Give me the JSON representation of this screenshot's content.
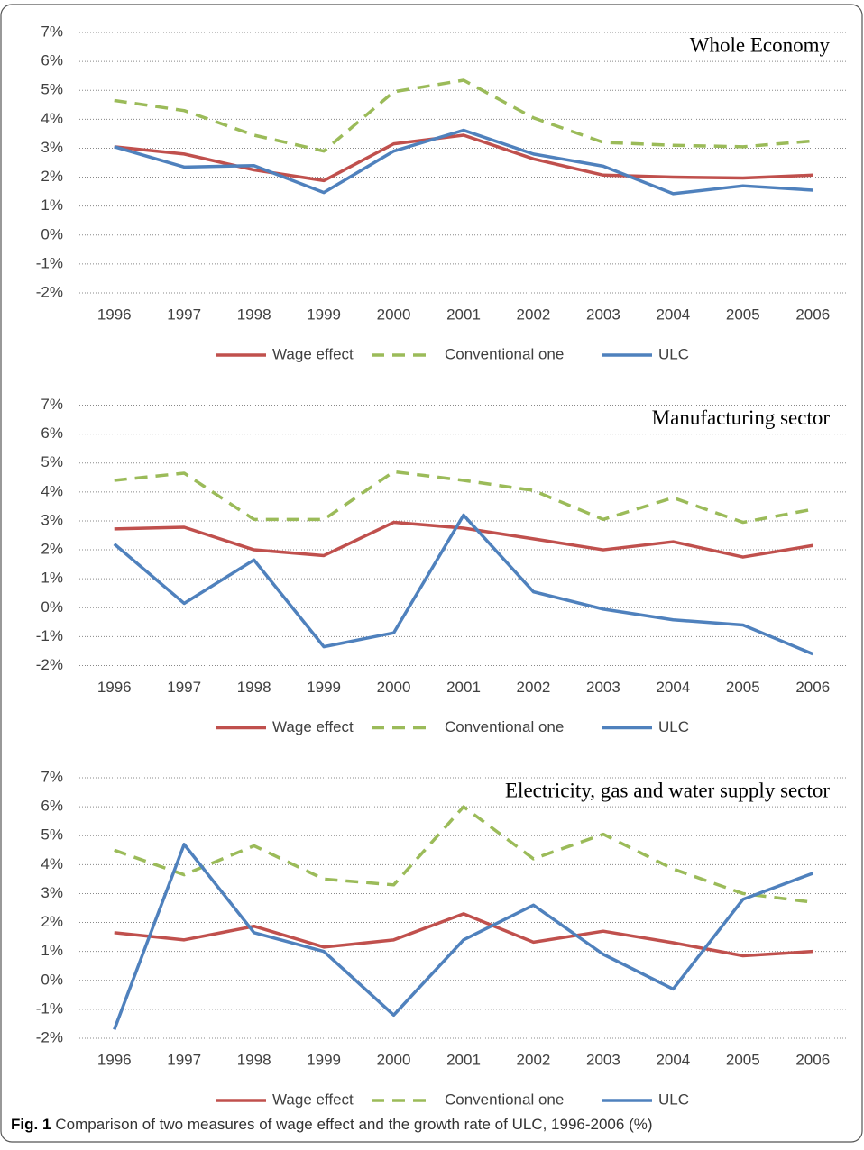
{
  "chart_data": [
    {
      "type": "line",
      "title": "Whole Economy",
      "categories": [
        "1996",
        "1997",
        "1998",
        "1999",
        "2000",
        "2001",
        "2002",
        "2003",
        "2004",
        "2005",
        "2006"
      ],
      "series": [
        {
          "name": "Wage effect",
          "color": "#c0504d",
          "line_style": "solid",
          "values": [
            3.05,
            2.8,
            2.25,
            1.88,
            3.15,
            3.45,
            2.63,
            2.07,
            2.0,
            1.97,
            2.07
          ]
        },
        {
          "name": "Conventional one",
          "color": "#9bbb59",
          "line_style": "dashed",
          "values": [
            4.65,
            4.3,
            3.45,
            2.9,
            4.95,
            5.35,
            4.05,
            3.2,
            3.1,
            3.05,
            3.25
          ]
        },
        {
          "name": "ULC",
          "color": "#4f81bd",
          "line_style": "solid",
          "values": [
            3.05,
            2.35,
            2.4,
            1.47,
            2.9,
            3.62,
            2.8,
            2.38,
            1.43,
            1.7,
            1.55
          ]
        }
      ],
      "ylim": [
        -2,
        7
      ],
      "yticks": [
        {
          "value": -2,
          "label": "-2%"
        },
        {
          "value": -1,
          "label": "-1%"
        },
        {
          "value": 0,
          "label": "0%"
        },
        {
          "value": 1,
          "label": "1%"
        },
        {
          "value": 2,
          "label": "2%"
        },
        {
          "value": 3,
          "label": "3%"
        },
        {
          "value": 4,
          "label": "4%"
        },
        {
          "value": 5,
          "label": "5%"
        },
        {
          "value": 6,
          "label": "6%"
        },
        {
          "value": 7,
          "label": "7%"
        }
      ],
      "grid": true,
      "legend": "bottom"
    },
    {
      "type": "line",
      "title": "Manufacturing sector",
      "categories": [
        "1996",
        "1997",
        "1998",
        "1999",
        "2000",
        "2001",
        "2002",
        "2003",
        "2004",
        "2005",
        "2006"
      ],
      "series": [
        {
          "name": "Wage effect",
          "color": "#c0504d",
          "line_style": "solid",
          "values": [
            2.72,
            2.78,
            2.0,
            1.8,
            2.95,
            2.75,
            2.38,
            2.0,
            2.28,
            1.75,
            2.15
          ]
        },
        {
          "name": "Conventional one",
          "color": "#9bbb59",
          "line_style": "dashed",
          "values": [
            4.4,
            4.65,
            3.05,
            3.05,
            4.7,
            4.4,
            4.05,
            3.05,
            3.8,
            2.95,
            3.4
          ]
        },
        {
          "name": "ULC",
          "color": "#4f81bd",
          "line_style": "solid",
          "values": [
            2.2,
            0.15,
            1.65,
            -1.35,
            -0.87,
            3.2,
            0.55,
            -0.05,
            -0.42,
            -0.6,
            -1.6
          ]
        }
      ],
      "ylim": [
        -2,
        7
      ],
      "yticks": [
        {
          "value": -2,
          "label": "-2%"
        },
        {
          "value": -1,
          "label": "-1%"
        },
        {
          "value": 0,
          "label": "0%"
        },
        {
          "value": 1,
          "label": "1%"
        },
        {
          "value": 2,
          "label": "2%"
        },
        {
          "value": 3,
          "label": "3%"
        },
        {
          "value": 4,
          "label": "4%"
        },
        {
          "value": 5,
          "label": "5%"
        },
        {
          "value": 6,
          "label": "6%"
        },
        {
          "value": 7,
          "label": "7%"
        }
      ],
      "grid": true,
      "legend": "bottom"
    },
    {
      "type": "line",
      "title": "Electricity, gas and water supply sector",
      "categories": [
        "1996",
        "1997",
        "1998",
        "1999",
        "2000",
        "2001",
        "2002",
        "2003",
        "2004",
        "2005",
        "2006"
      ],
      "series": [
        {
          "name": "Wage effect",
          "color": "#c0504d",
          "line_style": "solid",
          "values": [
            1.65,
            1.4,
            1.87,
            1.15,
            1.4,
            2.3,
            1.32,
            1.7,
            1.3,
            0.85,
            1.0
          ]
        },
        {
          "name": "Conventional one",
          "color": "#9bbb59",
          "line_style": "dashed",
          "values": [
            4.5,
            3.65,
            4.65,
            3.5,
            3.3,
            6.0,
            4.2,
            5.05,
            3.85,
            3.0,
            2.7
          ]
        },
        {
          "name": "ULC",
          "color": "#4f81bd",
          "line_style": "solid",
          "values": [
            -1.7,
            4.7,
            1.65,
            1.0,
            -1.2,
            1.4,
            2.6,
            0.9,
            -0.3,
            2.8,
            3.7
          ]
        }
      ],
      "ylim": [
        -2,
        7
      ],
      "yticks": [
        {
          "value": -2,
          "label": "-2%"
        },
        {
          "value": -1,
          "label": "-1%"
        },
        {
          "value": 0,
          "label": "0%"
        },
        {
          "value": 1,
          "label": "1%"
        },
        {
          "value": 2,
          "label": "2%"
        },
        {
          "value": 3,
          "label": "3%"
        },
        {
          "value": 4,
          "label": "4%"
        },
        {
          "value": 5,
          "label": "5%"
        },
        {
          "value": 6,
          "label": "6%"
        },
        {
          "value": 7,
          "label": "7%"
        }
      ],
      "grid": true,
      "legend": "bottom"
    }
  ],
  "caption": {
    "label": "Fig. 1",
    "text": "Comparison of two measures of wage effect and the growth rate of ULC, 1996-2006 (%)"
  }
}
